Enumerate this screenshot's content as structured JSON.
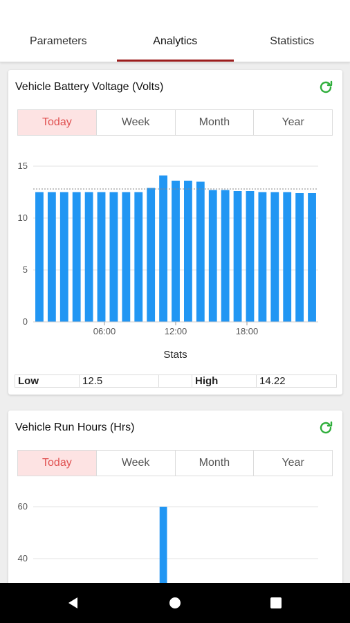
{
  "tabs": [
    {
      "label": "Parameters"
    },
    {
      "label": "Analytics"
    },
    {
      "label": "Statistics"
    }
  ],
  "active_tab": "Analytics",
  "accent_color": "#9c1c1c",
  "bar_color": "#2196f3",
  "refresh_icon": "refresh-icon",
  "cards": [
    {
      "title": "Vehicle Battery Voltage (Volts)",
      "periods": [
        "Today",
        "Week",
        "Month",
        "Year"
      ],
      "active_period": "Today",
      "stats_title": "Stats",
      "stats": {
        "low_label": "Low",
        "low_value": "12.5",
        "high_label": "High",
        "high_value": "14.22"
      }
    },
    {
      "title": "Vehicle Run Hours (Hrs)",
      "periods": [
        "Today",
        "Week",
        "Month",
        "Year"
      ],
      "active_period": "Today"
    }
  ],
  "chart_data": [
    {
      "type": "bar",
      "title": "Vehicle Battery Voltage (Volts)",
      "x_tick_labels": [
        "06:00",
        "12:00",
        "18:00"
      ],
      "values": [
        12.5,
        12.5,
        12.5,
        12.5,
        12.5,
        12.5,
        12.5,
        12.5,
        12.5,
        12.9,
        14.1,
        13.6,
        13.6,
        13.5,
        12.7,
        12.7,
        12.6,
        12.6,
        12.5,
        12.5,
        12.5,
        12.4,
        12.4
      ],
      "reference_line": 12.8,
      "y_ticks": [
        0,
        5,
        10,
        15
      ],
      "ylim": [
        0,
        15
      ],
      "grid": true
    },
    {
      "type": "bar",
      "title": "Vehicle Run Hours (Hrs)",
      "y_ticks": [
        40,
        60
      ],
      "ylim": [
        0,
        60
      ],
      "values": [
        0,
        0,
        0,
        0,
        0,
        0,
        0,
        0,
        0,
        0,
        60,
        0,
        0,
        0,
        0,
        0,
        0,
        0,
        0,
        0,
        0,
        0,
        0
      ],
      "grid": true
    }
  ],
  "nav": [
    "back-icon",
    "home-icon",
    "recents-icon"
  ]
}
